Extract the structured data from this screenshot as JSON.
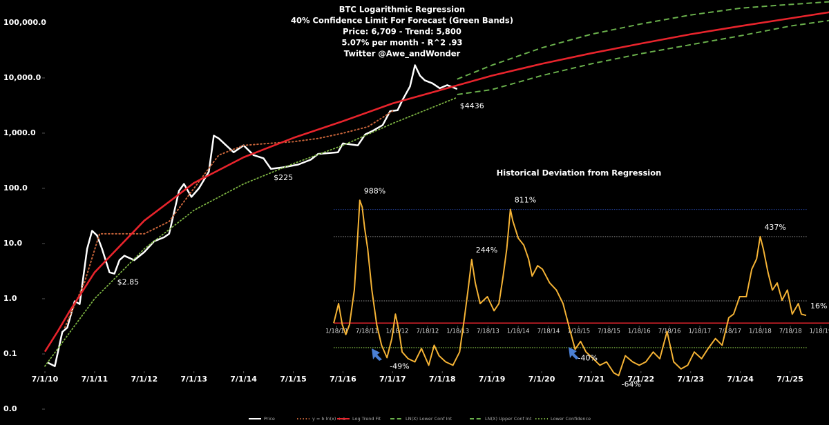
{
  "chart_data": [
    {
      "type": "line",
      "title": [
        "BTC Logarithmic Regression",
        "40% Confidence Limit For Forecast (Green Bands)",
        "Price: 6,709   -  Trend: 5,800",
        "5.07% per month - R^2 .93",
        "Twitter @Awe_andWonder"
      ],
      "log_scale": true,
      "xlim": [
        2010.5,
        2026.285
      ],
      "ylim": [
        0.01,
        230000
      ],
      "xticks": [
        {
          "value": 2010.5,
          "label": "7/1/10"
        },
        {
          "value": 2011.5,
          "label": "7/1/11"
        },
        {
          "value": 2012.5,
          "label": "7/1/12"
        },
        {
          "value": 2013.5,
          "label": "7/1/13"
        },
        {
          "value": 2014.5,
          "label": "7/1/14"
        },
        {
          "value": 2015.5,
          "label": "7/1/15"
        },
        {
          "value": 2016.5,
          "label": "7/1/16"
        },
        {
          "value": 2017.5,
          "label": "7/1/17"
        },
        {
          "value": 2018.5,
          "label": "7/1/18"
        },
        {
          "value": 2019.5,
          "label": "7/1/19"
        },
        {
          "value": 2020.5,
          "label": "7/1/20"
        },
        {
          "value": 2021.5,
          "label": "7/1/21"
        },
        {
          "value": 2022.5,
          "label": "7/1/22"
        },
        {
          "value": 2023.5,
          "label": "7/1/23"
        },
        {
          "value": 2024.5,
          "label": "7/1/24"
        },
        {
          "value": 2025.5,
          "label": "7/1/25"
        }
      ],
      "yticks": [
        {
          "value": 0.01,
          "label": "0.0"
        },
        0.1,
        {
          "value": 1,
          "label": "1.0"
        },
        {
          "value": 10,
          "label": "10.0"
        },
        {
          "value": 100,
          "label": "100.0"
        },
        {
          "value": 1000,
          "label": "1,000.0"
        },
        {
          "value": 10000,
          "label": "10,000.0"
        },
        {
          "value": 100000,
          "label": "100,000.0"
        }
      ],
      "series": [
        {
          "name": "Price",
          "color": "#ffffff",
          "dash": "solid",
          "width": 2.5,
          "x": [
            2010.55,
            2010.7,
            2010.85,
            2010.95,
            2011.1,
            2011.2,
            2011.35,
            2011.45,
            2011.55,
            2011.65,
            2011.8,
            2011.9,
            2012.0,
            2012.1,
            2012.3,
            2012.5,
            2012.7,
            2012.9,
            2013.0,
            2013.2,
            2013.3,
            2013.45,
            2013.6,
            2013.8,
            2013.9,
            2014.0,
            2014.15,
            2014.3,
            2014.5,
            2014.7,
            2014.9,
            2015.05,
            2015.3,
            2015.6,
            2015.85,
            2016.0,
            2016.4,
            2016.5,
            2016.8,
            2016.95,
            2017.1,
            2017.3,
            2017.45,
            2017.6,
            2017.7,
            2017.85,
            2017.95,
            2018.05,
            2018.15,
            2018.3,
            2018.45,
            2018.6,
            2018.8
          ],
          "values": [
            0.07,
            0.06,
            0.25,
            0.3,
            0.9,
            0.8,
            8,
            17,
            14,
            8,
            3,
            2.85,
            5,
            6,
            5,
            7,
            11,
            13,
            15,
            90,
            120,
            70,
            100,
            200,
            900,
            800,
            600,
            450,
            600,
            400,
            350,
            225,
            240,
            270,
            330,
            420,
            450,
            650,
            600,
            950,
            1100,
            1400,
            2500,
            2600,
            4000,
            7000,
            17000,
            11000,
            9000,
            8000,
            6500,
            7400,
            6300
          ],
          "value_labels": {
            "11": "$2.85",
            "31": "$225"
          }
        },
        {
          "name": "y = b ln(x) + a",
          "color": "#c8643a",
          "dash": "dotted",
          "width": 2,
          "x": [
            2010.9,
            2011.3,
            2011.6,
            2012.0,
            2012.5,
            2013.0,
            2013.5,
            2014.0,
            2014.5,
            2015.0,
            2015.5,
            2016.0,
            2016.5,
            2017.0,
            2017.5
          ],
          "values": [
            0.3,
            2,
            15,
            15,
            15,
            25,
            100,
            400,
            600,
            650,
            700,
            800,
            1000,
            1300,
            2500
          ]
        },
        {
          "name": "Log Trend Fit",
          "color": "#e8242c",
          "dash": "solid",
          "width": 2.6,
          "x": [
            2010.5,
            2010.75,
            2011.0,
            2011.5,
            2012.5,
            2013.5,
            2014.5,
            2015.5,
            2016.5,
            2017.5,
            2018.5,
            2019.5,
            2020.5,
            2021.5,
            2022.5,
            2023.5,
            2024.5,
            2025.5,
            2026.3
          ],
          "values": [
            0.11,
            0.25,
            0.6,
            3,
            26,
            125,
            365,
            820,
            1650,
            3450,
            6150,
            11000,
            18000,
            28000,
            42000,
            62000,
            87000,
            120000,
            155000
          ]
        },
        {
          "name": "LN(X) Lower Conf Int",
          "color": "#6ab04c",
          "dash": "dashed",
          "width": 2,
          "x": [
            2018.8,
            2019.5,
            2020.5,
            2021.5,
            2022.5,
            2023.5,
            2024.5,
            2025.5,
            2026.3
          ],
          "values": [
            5000,
            6150,
            11000,
            18000,
            27500,
            40000,
            58000,
            87000,
            110000
          ]
        },
        {
          "name": "LN(X) Upper Conf Int",
          "color": "#6ab04c",
          "dash": "dashed",
          "width": 2,
          "x": [
            2018.8,
            2019.5,
            2020.5,
            2021.5,
            2022.5,
            2023.5,
            2024.5,
            2025.2,
            2026.3
          ],
          "values": [
            9500,
            17000,
            35000,
            62000,
            95000,
            138000,
            183000,
            205000,
            240000
          ]
        },
        {
          "name": "Lower Confidence",
          "color": "#7cb342",
          "dash": "dotted",
          "width": 1.8,
          "x": [
            2010.5,
            2011.5,
            2012.5,
            2013.5,
            2014.5,
            2015.5,
            2016.5,
            2017.5,
            2018.8
          ],
          "values": [
            0.06,
            1,
            8,
            40,
            120,
            280,
            600,
            1500,
            4436
          ],
          "value_labels": {
            "8": "$4436"
          }
        }
      ]
    },
    {
      "type": "line",
      "title": "Historical Deviation from Regression",
      "log_scale": true,
      "xlim": [
        2010.85,
        2019.05
      ],
      "ylim": [
        -70,
        1100
      ],
      "xticks": [
        {
          "value": 2011.05,
          "label": "1/18/11"
        },
        {
          "value": 2011.55,
          "label": "7/18/11"
        },
        {
          "value": 2012.05,
          "label": "1/18/12"
        },
        {
          "value": 2012.55,
          "label": "7/18/12"
        },
        {
          "value": 2013.05,
          "label": "1/18/13"
        },
        {
          "value": 2013.55,
          "label": "7/18/13"
        },
        {
          "value": 2014.05,
          "label": "1/18/14"
        },
        {
          "value": 2014.55,
          "label": "7/18/14"
        },
        {
          "value": 2015.05,
          "label": "1/18/15"
        },
        {
          "value": 2015.55,
          "label": "7/18/15"
        },
        {
          "value": 2016.05,
          "label": "1/18/16"
        },
        {
          "value": 2016.55,
          "label": "7/18/16"
        },
        {
          "value": 2017.05,
          "label": "1/18/17"
        },
        {
          "value": 2017.55,
          "label": "7/18/17"
        },
        {
          "value": 2018.05,
          "label": "1/18/18"
        },
        {
          "value": 2018.55,
          "label": "7/18/18"
        },
        {
          "value": 2019.05,
          "label": "1/18/19"
        }
      ],
      "reference_lines": [
        {
          "value": 811,
          "color": "#1f3a8a",
          "dash": "dotted"
        },
        {
          "value": 437,
          "color": "#888888",
          "dash": "dotted"
        },
        {
          "value": 54,
          "color": "#888888",
          "dash": "dotted"
        },
        {
          "value": -38,
          "color": "#7cb342",
          "dash": "dotted"
        },
        {
          "value": 0,
          "color": "#e8242c",
          "dash": "solid"
        }
      ],
      "series": [
        {
          "color": "#f5b335",
          "dash": "solid",
          "width": 2,
          "x": [
            2011.0,
            2011.08,
            2011.14,
            2011.2,
            2011.26,
            2011.34,
            2011.39,
            2011.43,
            2011.47,
            2011.51,
            2011.56,
            2011.63,
            2011.71,
            2011.79,
            2011.88,
            2011.96,
            2012.02,
            2012.08,
            2012.13,
            2012.23,
            2012.34,
            2012.45,
            2012.57,
            2012.66,
            2012.74,
            2012.85,
            2012.97,
            2013.08,
            2013.16,
            2013.22,
            2013.28,
            2013.34,
            2013.42,
            2013.54,
            2013.65,
            2013.73,
            2013.8,
            2013.86,
            2013.92,
            2013.96,
            2014.05,
            2014.14,
            2014.22,
            2014.28,
            2014.37,
            2014.45,
            2014.57,
            2014.68,
            2014.79,
            2014.91,
            2014.99,
            2015.08,
            2015.17,
            2015.29,
            2015.4,
            2015.51,
            2015.63,
            2015.71,
            2015.82,
            2015.94,
            2016.05,
            2016.16,
            2016.28,
            2016.39,
            2016.51,
            2016.62,
            2016.74,
            2016.85,
            2016.96,
            2017.08,
            2017.19,
            2017.31,
            2017.42,
            2017.53,
            2017.61,
            2017.71,
            2017.82,
            2017.91,
            2017.99,
            2018.05,
            2018.1,
            2018.18,
            2018.25,
            2018.33,
            2018.41,
            2018.5,
            2018.58,
            2018.68,
            2018.73,
            2018.81
          ],
          "values": [
            0,
            46,
            -3,
            -20,
            -3,
            90,
            387,
            988,
            853,
            537,
            326,
            90,
            -3,
            -35,
            -49,
            -26,
            19,
            -15,
            -43,
            -50,
            -53,
            -39,
            -56,
            -35,
            -47,
            -53,
            -56,
            -43,
            11,
            90,
            244,
            118,
            46,
            67,
            27,
            46,
            149,
            326,
            811,
            629,
            421,
            356,
            248,
            149,
            205,
            185,
            118,
            90,
            46,
            -15,
            -40,
            -30,
            -43,
            -50,
            -56,
            -53,
            -62,
            -64,
            -47,
            -53,
            -56,
            -53,
            -43,
            -50,
            -15,
            -53,
            -59,
            -56,
            -43,
            -50,
            -39,
            -26,
            -35,
            11,
            19,
            67,
            67,
            185,
            248,
            437,
            326,
            166,
            90,
            118,
            56,
            90,
            19,
            46,
            19,
            16
          ],
          "value_labels": {
            "7": "988%",
            "14": "-49%",
            "30": "244%",
            "38": "811%",
            "50": "-40%",
            "57": "-64%",
            "79": "437%",
            "89": "16%"
          }
        }
      ]
    }
  ]
}
